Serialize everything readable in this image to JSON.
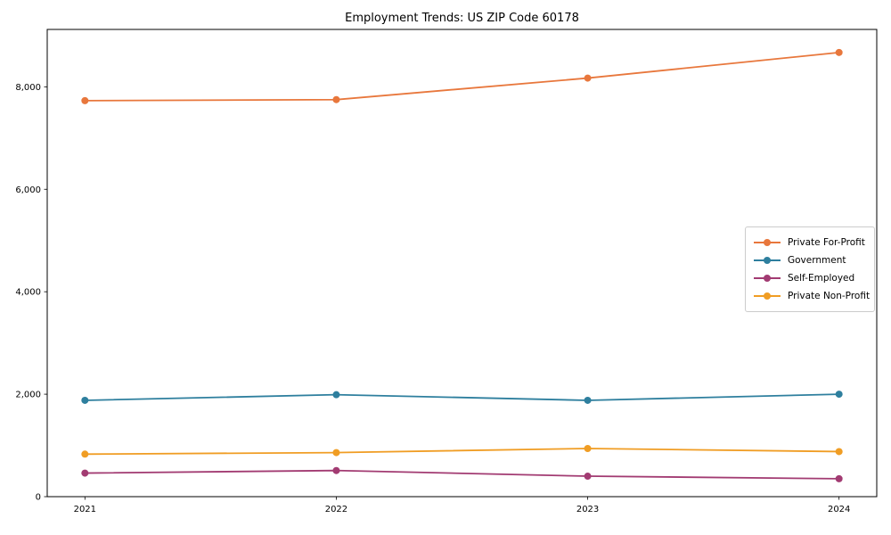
{
  "chart_data": {
    "type": "line",
    "title": "Employment Trends: US ZIP Code 60178",
    "xlabel": "",
    "ylabel": "",
    "x": [
      2021,
      2022,
      2023,
      2024
    ],
    "x_tick_labels": [
      "2021",
      "2022",
      "2023",
      "2024"
    ],
    "y_ticks": [
      {
        "value": 0,
        "label": "0"
      },
      {
        "value": 2000,
        "label": "2,000"
      },
      {
        "value": 4000,
        "label": "4,000"
      },
      {
        "value": 6000,
        "label": "6,000"
      },
      {
        "value": 8000,
        "label": "8,000"
      }
    ],
    "xlim": [
      2020.85,
      2024.15
    ],
    "ylim": [
      0,
      9120
    ],
    "grid": false,
    "legend_position": "center-right",
    "series": [
      {
        "name": "Private For-Profit",
        "color": "#e8773c",
        "values": [
          7730,
          7750,
          8170,
          8670
        ]
      },
      {
        "name": "Government",
        "color": "#2e7f9e",
        "values": [
          1880,
          1990,
          1880,
          2000
        ]
      },
      {
        "name": "Self-Employed",
        "color": "#a23b72",
        "values": [
          460,
          510,
          400,
          350
        ]
      },
      {
        "name": "Private Non-Profit",
        "color": "#f09d24",
        "values": [
          830,
          860,
          940,
          880
        ]
      }
    ],
    "style": {
      "spine_color": "#000000",
      "background": "#ffffff",
      "line_width": 1.8,
      "marker_radius": 4
    }
  }
}
